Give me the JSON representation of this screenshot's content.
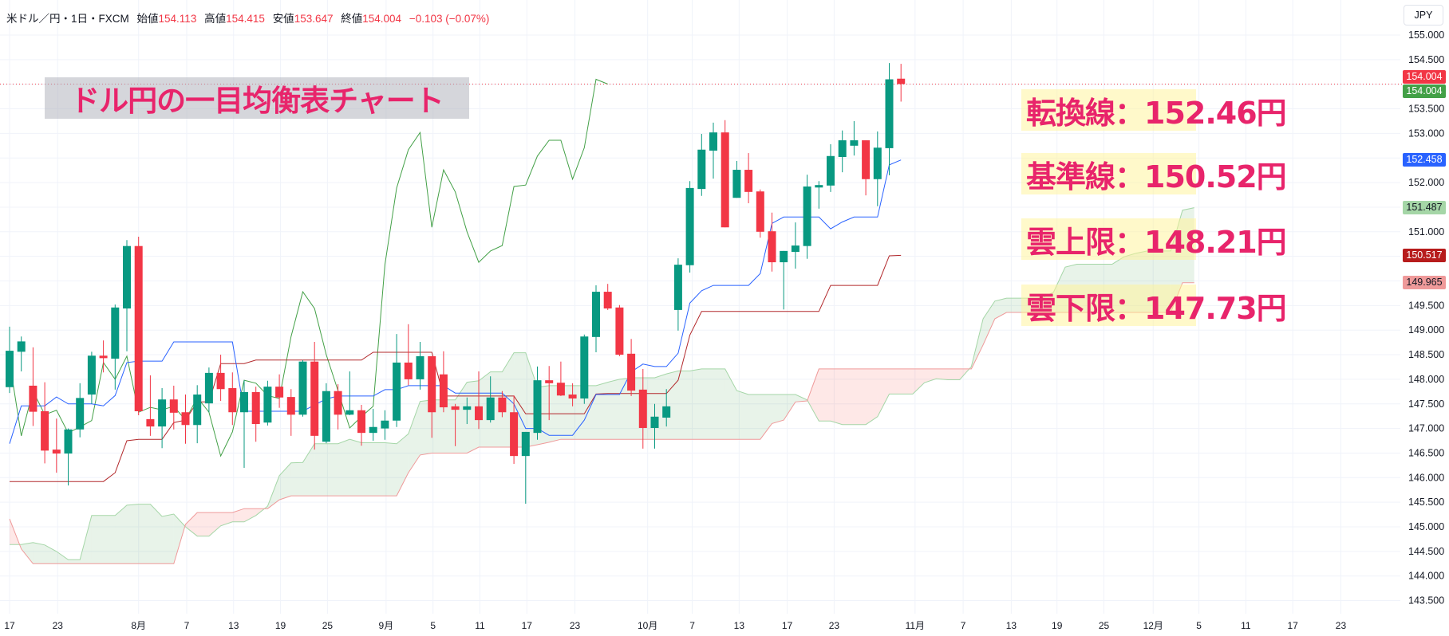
{
  "header": {
    "symbol": "米ドル／円・1日・FXCM",
    "open_label": "始値",
    "open": "154.113",
    "high_label": "高値",
    "high": "154.415",
    "low_label": "安値",
    "low": "153.647",
    "close_label": "終値",
    "close": "154.004",
    "change": "−0.103 (−0.07%)"
  },
  "currency_button": "JPY",
  "annotations": {
    "title": "ドル円の一目均衡表チャート",
    "notes": [
      "転換線：152.46円",
      "基準線：150.52円",
      "雲上限：148.21円",
      "雲下限：147.73円"
    ]
  },
  "colors": {
    "bull": "#089981",
    "bear": "#f23645",
    "tenkan": "#2962ff",
    "kijun": "#b2282b",
    "chikou": "#43a047",
    "span_a": "#a5d6a7",
    "span_b": "#ef9a9a",
    "cloud_up": "rgba(67,160,71,0.12)",
    "cloud_down": "rgba(244,67,54,0.12)",
    "grid": "#f0f3fa"
  },
  "price_labels": [
    {
      "text": "154.004",
      "price": 154.004,
      "bg": "#f23645",
      "fg": "#ffffff"
    },
    {
      "text": "154.004",
      "price": 154.004,
      "bg": "#43a047",
      "fg": "#ffffff"
    },
    {
      "text": "152.458",
      "price": 152.458,
      "bg": "#2962ff",
      "fg": "#ffffff"
    },
    {
      "text": "151.487",
      "price": 151.487,
      "bg": "#a5d6a7",
      "fg": "#131722"
    },
    {
      "text": "150.517",
      "price": 150.517,
      "bg": "#b71c1c",
      "fg": "#ffffff"
    },
    {
      "text": "149.965",
      "price": 149.965,
      "bg": "#ef9a9a",
      "fg": "#131722"
    }
  ],
  "chart_data": {
    "type": "candlestick",
    "title": "米ドル／円・1日・FXCM",
    "ylabel": "JPY",
    "ylim": [
      143.5,
      155.0
    ],
    "y_ticks": [
      "155.000",
      "154.500",
      "153.500",
      "153.000",
      "152.000",
      "151.000",
      "149.500",
      "149.000",
      "148.500",
      "148.000",
      "147.500",
      "147.000",
      "146.500",
      "146.000",
      "145.500",
      "145.000",
      "144.500",
      "144.000",
      "143.500"
    ],
    "x_ticks": [
      {
        "label": "17",
        "bar": 0
      },
      {
        "label": "23",
        "bar": 4.1
      },
      {
        "label": "8月",
        "bar": 11
      },
      {
        "label": "7",
        "bar": 15.1
      },
      {
        "label": "13",
        "bar": 19.1
      },
      {
        "label": "19",
        "bar": 23.1
      },
      {
        "label": "25",
        "bar": 27.1
      },
      {
        "label": "9月",
        "bar": 32.1
      },
      {
        "label": "5",
        "bar": 36.1
      },
      {
        "label": "11",
        "bar": 40.1
      },
      {
        "label": "17",
        "bar": 44.1
      },
      {
        "label": "23",
        "bar": 48.2
      },
      {
        "label": "10月",
        "bar": 54.4
      },
      {
        "label": "7",
        "bar": 58.2
      },
      {
        "label": "13",
        "bar": 62.2
      },
      {
        "label": "17",
        "bar": 66.3
      },
      {
        "label": "23",
        "bar": 70.3
      },
      {
        "label": "11月",
        "bar": 77.2
      },
      {
        "label": "7",
        "bar": 81.3
      },
      {
        "label": "13",
        "bar": 85.4
      },
      {
        "label": "19",
        "bar": 89.3
      },
      {
        "label": "25",
        "bar": 93.3
      },
      {
        "label": "12月",
        "bar": 97.5
      },
      {
        "label": "5",
        "bar": 101.4
      },
      {
        "label": "11",
        "bar": 105.4
      },
      {
        "label": "17",
        "bar": 109.4
      },
      {
        "label": "23",
        "bar": 113.5
      }
    ],
    "candles_ohlc": [
      [
        147.84,
        149.07,
        147.72,
        148.58
      ],
      [
        148.56,
        148.87,
        148.16,
        148.77
      ],
      [
        147.87,
        148.65,
        147.05,
        147.34
      ],
      [
        147.35,
        147.94,
        146.29,
        146.55
      ],
      [
        146.57,
        147.2,
        146.1,
        146.49
      ],
      [
        146.49,
        147.0,
        145.84,
        146.98
      ],
      [
        146.98,
        147.92,
        146.82,
        147.62
      ],
      [
        147.69,
        148.56,
        147.5,
        148.48
      ],
      [
        148.48,
        148.79,
        148.14,
        148.43
      ],
      [
        148.42,
        149.52,
        147.79,
        149.46
      ],
      [
        149.44,
        150.83,
        148.57,
        150.71
      ],
      [
        150.71,
        150.9,
        147.27,
        147.35
      ],
      [
        147.19,
        148.08,
        146.85,
        147.04
      ],
      [
        147.04,
        147.82,
        146.6,
        147.59
      ],
      [
        147.59,
        147.87,
        146.98,
        147.32
      ],
      [
        147.33,
        147.69,
        146.69,
        147.07
      ],
      [
        147.07,
        147.88,
        146.7,
        147.69
      ],
      [
        147.51,
        148.24,
        147.33,
        148.13
      ],
      [
        148.13,
        148.5,
        147.56,
        147.8
      ],
      [
        147.82,
        148.14,
        147.07,
        147.33
      ],
      [
        147.33,
        147.98,
        146.2,
        147.74
      ],
      [
        147.74,
        147.85,
        146.73,
        147.09
      ],
      [
        147.12,
        147.97,
        147.06,
        147.85
      ],
      [
        147.85,
        148.1,
        147.42,
        147.63
      ],
      [
        147.64,
        147.8,
        146.85,
        147.28
      ],
      [
        147.28,
        148.39,
        147.24,
        148.36
      ],
      [
        148.36,
        148.76,
        146.57,
        146.85
      ],
      [
        146.73,
        147.92,
        146.7,
        147.76
      ],
      [
        147.76,
        147.9,
        146.98,
        147.28
      ],
      [
        147.28,
        148.16,
        147.27,
        147.37
      ],
      [
        147.37,
        147.48,
        146.65,
        146.91
      ],
      [
        146.91,
        147.4,
        146.75,
        147.03
      ],
      [
        147.0,
        147.37,
        146.77,
        147.16
      ],
      [
        147.16,
        148.92,
        147.03,
        148.34
      ],
      [
        148.34,
        149.12,
        147.88,
        148.0
      ],
      [
        148.0,
        148.76,
        147.79,
        148.47
      ],
      [
        148.47,
        148.47,
        146.81,
        147.33
      ],
      [
        148.1,
        148.57,
        147.33,
        147.43
      ],
      [
        147.45,
        147.5,
        146.64,
        147.38
      ],
      [
        147.38,
        147.63,
        147.09,
        147.45
      ],
      [
        147.45,
        148.16,
        146.99,
        147.17
      ],
      [
        147.17,
        148.06,
        147.12,
        147.63
      ],
      [
        147.63,
        147.76,
        147.23,
        147.33
      ],
      [
        147.33,
        147.67,
        146.28,
        146.44
      ],
      [
        146.44,
        146.93,
        145.47,
        146.93
      ],
      [
        146.91,
        148.26,
        146.77,
        147.98
      ],
      [
        147.98,
        148.27,
        147.17,
        147.92
      ],
      [
        147.93,
        148.36,
        147.66,
        147.67
      ],
      [
        147.69,
        147.92,
        147.45,
        147.61
      ],
      [
        147.61,
        148.91,
        147.5,
        148.87
      ],
      [
        148.86,
        149.91,
        148.55,
        149.78
      ],
      [
        149.78,
        149.94,
        149.41,
        149.44
      ],
      [
        149.46,
        149.51,
        148.47,
        148.5
      ],
      [
        148.52,
        148.82,
        147.66,
        147.77
      ],
      [
        147.79,
        148.21,
        146.59,
        147.01
      ],
      [
        147.01,
        147.5,
        146.59,
        147.24
      ],
      [
        147.22,
        147.8,
        147.04,
        147.45
      ],
      [
        149.41,
        150.46,
        148.99,
        150.33
      ],
      [
        150.32,
        152.03,
        150.17,
        151.89
      ],
      [
        151.87,
        152.99,
        151.73,
        152.67
      ],
      [
        152.65,
        153.22,
        152.08,
        153.02
      ],
      [
        153.02,
        153.27,
        151.09,
        151.09
      ],
      [
        151.69,
        152.44,
        151.69,
        152.26
      ],
      [
        152.26,
        152.6,
        151.58,
        151.81
      ],
      [
        151.82,
        151.86,
        150.88,
        151.0
      ],
      [
        151.01,
        151.39,
        150.19,
        150.38
      ],
      [
        150.38,
        150.61,
        149.42,
        150.61
      ],
      [
        150.59,
        151.19,
        150.25,
        150.72
      ],
      [
        150.71,
        152.16,
        150.45,
        151.92
      ],
      [
        151.9,
        152.03,
        151.47,
        151.95
      ],
      [
        151.94,
        152.78,
        151.81,
        152.54
      ],
      [
        152.52,
        153.06,
        152.21,
        152.86
      ],
      [
        152.75,
        153.25,
        152.55,
        152.86
      ],
      [
        152.86,
        152.86,
        151.74,
        152.07
      ],
      [
        152.07,
        153.04,
        151.52,
        152.71
      ],
      [
        152.7,
        154.43,
        152.15,
        154.1
      ],
      [
        154.113,
        154.415,
        153.647,
        154.004
      ]
    ],
    "last_price": 154.004,
    "tenkan": [
      146.69,
      147.46,
      147.46,
      147.46,
      147.64,
      147.5,
      147.5,
      147.5,
      147.46,
      147.67,
      148.34,
      148.37,
      148.37,
      148.37,
      148.76,
      148.76,
      148.76,
      148.76,
      148.76,
      148.76,
      147.35,
      147.35,
      147.35,
      147.35,
      147.35,
      147.35,
      147.48,
      147.6,
      147.66,
      147.66,
      147.66,
      147.66,
      147.79,
      147.79,
      147.87,
      147.87,
      147.87,
      147.87,
      147.72,
      147.72,
      147.72,
      147.72,
      147.72,
      147.5,
      147.0,
      147.0,
      146.86,
      146.86,
      146.86,
      147.17,
      147.69,
      147.69,
      147.69,
      148.15,
      148.31,
      148.26,
      148.26,
      148.53,
      149.55,
      149.8,
      149.91,
      149.91,
      149.91,
      149.91,
      150.15,
      151.17,
      151.3,
      151.3,
      151.3,
      151.3,
      151.06,
      151.2,
      151.3,
      151.3,
      151.3,
      152.36,
      152.46
    ],
    "kijun": [
      145.92,
      145.92,
      145.92,
      145.92,
      145.92,
      145.92,
      145.92,
      145.92,
      145.92,
      146.1,
      146.75,
      146.78,
      146.78,
      146.78,
      147.12,
      147.17,
      147.54,
      147.54,
      148.32,
      148.32,
      148.32,
      148.39,
      148.39,
      148.39,
      148.39,
      148.39,
      148.39,
      148.39,
      148.39,
      148.39,
      148.39,
      148.55,
      148.55,
      148.55,
      148.55,
      148.55,
      148.55,
      147.66,
      147.66,
      147.66,
      147.66,
      147.66,
      147.66,
      147.66,
      147.3,
      147.3,
      147.3,
      147.3,
      147.3,
      147.3,
      147.7,
      147.71,
      147.71,
      147.71,
      147.71,
      147.71,
      147.71,
      147.98,
      148.9,
      149.38,
      149.38,
      149.38,
      149.38,
      149.38,
      149.38,
      149.38,
      149.38,
      149.38,
      149.38,
      149.38,
      149.91,
      149.91,
      149.91,
      149.91,
      149.91,
      150.51,
      150.52
    ],
    "senkou_a": [
      144.64,
      144.64,
      144.68,
      144.63,
      144.5,
      144.33,
      144.33,
      145.23,
      145.23,
      145.23,
      145.44,
      145.46,
      145.46,
      145.21,
      145.26,
      145.0,
      144.81,
      144.81,
      145.02,
      145.1,
      145.1,
      145.23,
      145.42,
      146.04,
      146.3,
      146.31,
      146.69,
      146.69,
      146.69,
      146.78,
      146.71,
      146.71,
      146.71,
      146.69,
      146.89,
      147.55,
      147.58,
      147.58,
      147.58,
      147.94,
      147.97,
      148.15,
      148.15,
      148.54,
      148.54,
      147.84,
      147.87,
      147.87,
      147.87,
      147.87,
      147.87,
      147.94,
      148.0,
      148.03,
      148.03,
      148.03,
      148.11,
      148.17,
      148.17,
      148.21,
      148.21,
      148.21,
      147.77,
      147.69,
      147.69,
      147.69,
      147.69,
      147.69,
      147.58,
      147.15,
      147.15,
      147.08,
      147.08,
      147.08,
      147.24,
      147.7,
      147.7,
      147.7,
      147.93,
      148.01,
      147.99,
      147.99,
      148.26,
      149.23,
      149.59,
      149.65,
      149.65,
      149.65,
      149.65,
      149.77,
      150.28,
      150.34,
      150.34,
      150.34,
      150.34,
      150.49,
      150.56,
      150.61,
      150.61,
      150.61,
      151.44,
      151.49
    ],
    "senkou_b": [
      145.16,
      144.55,
      144.25,
      144.25,
      144.25,
      144.25,
      144.25,
      144.25,
      144.25,
      144.25,
      144.25,
      144.25,
      144.25,
      144.25,
      144.25,
      145.05,
      145.29,
      145.29,
      145.29,
      145.29,
      145.37,
      145.37,
      145.37,
      145.55,
      145.63,
      145.63,
      145.63,
      145.63,
      145.63,
      145.63,
      145.63,
      145.63,
      145.63,
      145.63,
      146.1,
      146.46,
      146.5,
      146.5,
      146.5,
      146.5,
      146.62,
      146.62,
      146.62,
      146.62,
      146.62,
      146.67,
      146.72,
      146.78,
      146.78,
      146.78,
      146.78,
      146.78,
      146.78,
      146.78,
      146.78,
      146.78,
      146.78,
      146.78,
      146.78,
      146.78,
      146.78,
      146.78,
      146.78,
      146.78,
      146.78,
      147.1,
      147.17,
      147.54,
      147.56,
      148.21,
      148.21,
      148.21,
      148.21,
      148.21,
      148.21,
      148.21,
      148.21,
      148.21,
      148.21,
      148.21,
      148.21,
      148.21,
      148.21,
      148.7,
      149.23,
      149.36,
      149.36,
      149.36,
      149.36,
      149.36,
      149.36,
      149.36,
      149.36,
      149.36,
      149.36,
      149.36,
      149.36,
      149.36,
      149.36,
      149.36,
      149.965,
      149.965
    ],
    "chikou_shift_bars": 25
  }
}
